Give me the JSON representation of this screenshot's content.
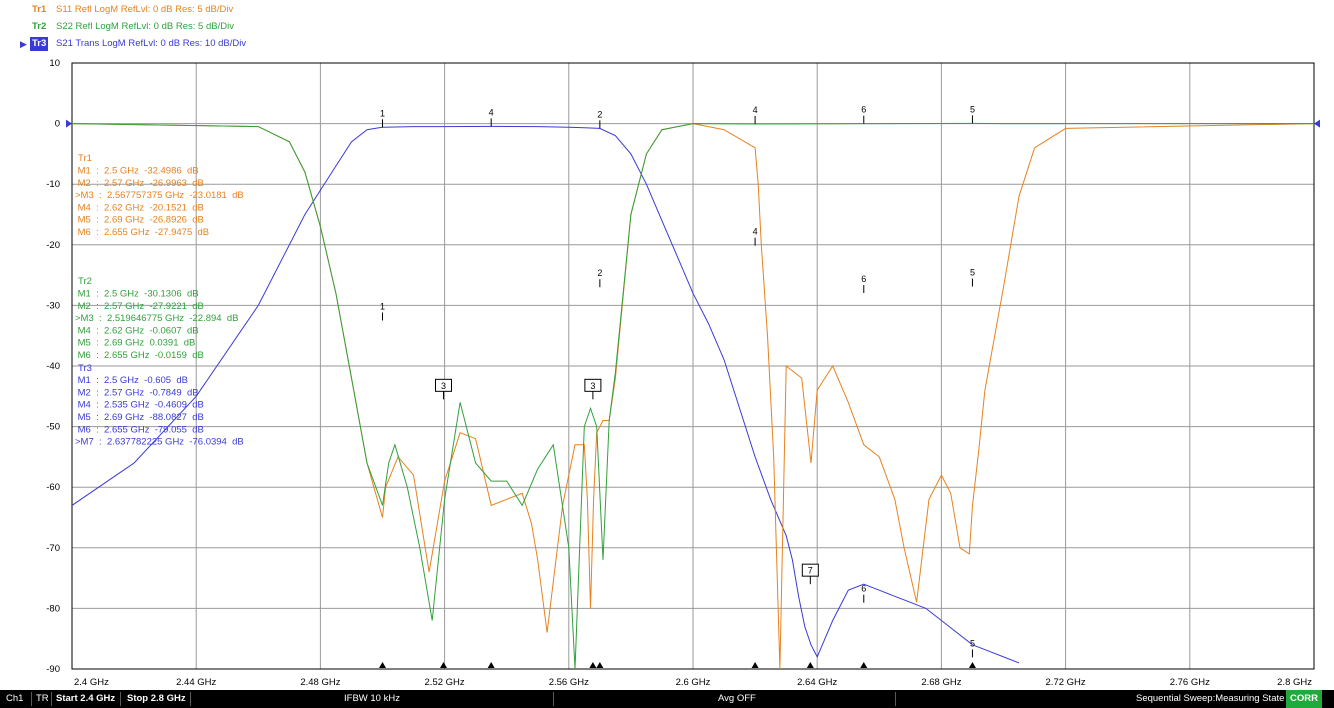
{
  "traces_header": [
    {
      "tag": "Tr1",
      "desc": "S11 Refl LogM RefLvl: 0  dB Res: 5  dB/Div",
      "color": "#e6821e",
      "active": false
    },
    {
      "tag": "Tr2",
      "desc": "S22 Refl LogM RefLvl: 0  dB Res: 5  dB/Div",
      "color": "#32a03c",
      "active": false
    },
    {
      "tag": "Tr3",
      "desc": "S21 Trans LogM RefLvl: 0  dB Res: 10  dB/Div",
      "color": "#3a3ad8",
      "active": true
    }
  ],
  "status": {
    "ch": "Ch1",
    "tr": "TR",
    "start": "Start 2.4 GHz",
    "stop": "Stop 2.8 GHz",
    "ifbw": "IFBW 10 kHz",
    "avg": "Avg OFF",
    "sweep": "Sequential Sweep:Measuring State",
    "corr": "CORR"
  },
  "colors": {
    "tr1": "#e6821e",
    "tr2": "#32a03c",
    "tr3": "#3a3ad8",
    "grid": "#9a9a9a",
    "frame": "#000000"
  },
  "chart_data": {
    "type": "line",
    "xlim": [
      2.4,
      2.8
    ],
    "ylim": [
      -90,
      10
    ],
    "x_unit": "GHz",
    "x_ticks": [
      2.4,
      2.44,
      2.48,
      2.52,
      2.56,
      2.6,
      2.64,
      2.68,
      2.72,
      2.76,
      2.8
    ],
    "x_tick_labels": [
      "2.4 GHz",
      "2.44 GHz",
      "2.48 GHz",
      "2.52 GHz",
      "2.56 GHz",
      "2.6 GHz",
      "2.64 GHz",
      "2.68 GHz",
      "2.72 GHz",
      "2.76 GHz",
      "2.8 GHz"
    ],
    "y_ticks": [
      10,
      0,
      -10,
      -20,
      -30,
      -40,
      -50,
      -60,
      -70,
      -80,
      -90
    ],
    "y_tick_labels": [
      "10",
      "0",
      "-10",
      "-20",
      "-30",
      "-40",
      "-50",
      "-60",
      "-70",
      "-80",
      "-90"
    ],
    "grid": true,
    "series": [
      {
        "name": "Tr1",
        "color": "#e6821e",
        "x": [
          2.4,
          2.46,
          2.47,
          2.475,
          2.48,
          2.485,
          2.49,
          2.495,
          2.5,
          2.501,
          2.505,
          2.51,
          2.515,
          2.52,
          2.525,
          2.53,
          2.535,
          2.54,
          2.545,
          2.548,
          2.55,
          2.553,
          2.558,
          2.562,
          2.565,
          2.566,
          2.567,
          2.568,
          2.569,
          2.571,
          2.573,
          2.575,
          2.58,
          2.585,
          2.59,
          2.6,
          2.61,
          2.62,
          2.621,
          2.622,
          2.624,
          2.626,
          2.628,
          2.63,
          2.635,
          2.638,
          2.64,
          2.645,
          2.65,
          2.655,
          2.66,
          2.665,
          2.668,
          2.672,
          2.676,
          2.68,
          2.683,
          2.686,
          2.689,
          2.69,
          2.692,
          2.694,
          2.7,
          2.705,
          2.71,
          2.72,
          2.8
        ],
        "y": [
          0,
          -0.5,
          -3,
          -8,
          -17,
          -28,
          -42,
          -56,
          -65,
          -60,
          -55,
          -58,
          -74,
          -59,
          -51,
          -52,
          -63,
          -62,
          -61,
          -66,
          -72,
          -84,
          -63,
          -53,
          -53,
          -62,
          -80,
          -62,
          -51,
          -49,
          -49,
          -42,
          -15,
          -5,
          -1,
          0,
          -1,
          -4,
          -10,
          -20,
          -35,
          -55,
          -90,
          -40,
          -42,
          -56,
          -44,
          -40,
          -46,
          -53,
          -55,
          -62,
          -70,
          -79,
          -62,
          -58,
          -61,
          -70,
          -71,
          -63,
          -54,
          -44,
          -27,
          -12,
          -4,
          -0.8,
          0
        ]
      },
      {
        "name": "Tr2",
        "color": "#32a03c",
        "x": [
          2.4,
          2.46,
          2.47,
          2.475,
          2.48,
          2.485,
          2.49,
          2.495,
          2.5,
          2.502,
          2.504,
          2.508,
          2.512,
          2.516,
          2.52,
          2.525,
          2.53,
          2.535,
          2.54,
          2.545,
          2.55,
          2.555,
          2.56,
          2.562,
          2.565,
          2.567,
          2.569,
          2.571,
          2.573,
          2.575,
          2.58,
          2.585,
          2.59,
          2.6,
          2.62,
          2.69,
          2.7,
          2.8
        ],
        "y": [
          0,
          -0.5,
          -3,
          -8,
          -17,
          -28,
          -42,
          -56,
          -63,
          -56,
          -53,
          -60,
          -70,
          -82,
          -62,
          -46,
          -56,
          -59,
          -59,
          -63,
          -57,
          -53,
          -70,
          -90,
          -50,
          -47,
          -50,
          -72,
          -49,
          -41,
          -15,
          -5,
          -1,
          0,
          -0.06,
          0.04,
          0,
          0
        ]
      },
      {
        "name": "Tr3",
        "color": "#3a3ad8",
        "x": [
          2.4,
          2.42,
          2.44,
          2.46,
          2.475,
          2.485,
          2.49,
          2.495,
          2.5,
          2.51,
          2.52,
          2.535,
          2.55,
          2.56,
          2.565,
          2.57,
          2.575,
          2.58,
          2.585,
          2.59,
          2.595,
          2.6,
          2.605,
          2.61,
          2.615,
          2.62,
          2.625,
          2.63,
          2.632,
          2.634,
          2.636,
          2.638,
          2.64,
          2.645,
          2.65,
          2.655,
          2.66,
          2.665,
          2.67,
          2.675,
          2.68,
          2.685,
          2.69,
          2.695,
          2.7,
          2.705
        ],
        "y": [
          -63,
          -56,
          -45,
          -30,
          -15,
          -7,
          -3,
          -1,
          -0.6,
          -0.5,
          -0.5,
          -0.46,
          -0.5,
          -0.6,
          -0.7,
          -0.8,
          -2,
          -5,
          -10,
          -16,
          -22,
          -28,
          -33,
          -39,
          -47,
          -55,
          -62,
          -68,
          -72,
          -78,
          -83,
          -86,
          -88,
          -82,
          -77,
          -76,
          -77,
          -78,
          -79,
          -80,
          -82,
          -84,
          -86,
          -87,
          -88,
          -89
        ]
      }
    ],
    "marker_tags": [
      {
        "series": "Tr3",
        "label": "1",
        "x": 2.5,
        "y": -0.605
      },
      {
        "series": "Tr3",
        "label": "4",
        "x": 2.535,
        "y": -0.4609
      },
      {
        "series": "Tr3",
        "label": "2",
        "x": 2.57,
        "y": -0.7849
      },
      {
        "series": "Tr2",
        "label": "4",
        "x": 2.62,
        "y": -0.0607
      },
      {
        "series": "Tr2",
        "label": "6",
        "x": 2.655,
        "y": -0.0159
      },
      {
        "series": "Tr2",
        "label": "5",
        "x": 2.69,
        "y": 0.0391
      },
      {
        "series": "Tr1",
        "label": "4",
        "x": 2.62,
        "y": -20.1521
      },
      {
        "series": "Tr1",
        "label": "6",
        "x": 2.655,
        "y": -27.9475
      },
      {
        "series": "Tr1",
        "label": "5",
        "x": 2.69,
        "y": -26.8926
      },
      {
        "series": "Tr1",
        "label": "1",
        "x": 2.5,
        "y": -32.4986
      },
      {
        "series": "Tr1",
        "label": "2",
        "x": 2.57,
        "y": -26.9963
      },
      {
        "series": "Tr3",
        "label": "6",
        "x": 2.655,
        "y": -79.055
      },
      {
        "series": "Tr3",
        "label": "5",
        "x": 2.69,
        "y": -88.0827
      }
    ],
    "marker_boxes": [
      {
        "series": "Tr2",
        "label": "3",
        "x": 2.519646775,
        "y": -45.5
      },
      {
        "series": "Tr1",
        "label": "3",
        "x": 2.567757375,
        "y": -45.5
      },
      {
        "series": "Tr3",
        "label": "7",
        "x": 2.637782225,
        "y": -76.0
      }
    ],
    "stimulus_markers": [
      2.5,
      2.519646775,
      2.535,
      2.567757375,
      2.57,
      2.62,
      2.637782225,
      2.655,
      2.69
    ],
    "marker_tables": [
      {
        "series": "Tr1",
        "color": "#e6821e",
        "title": "Tr1",
        "rows": [
          " M1  :  2.5 GHz  -32.4986  dB",
          " M2  :  2.57 GHz  -26.9963  dB",
          ">M3  :  2.567757375 GHz  -23.0181  dB",
          " M4  :  2.62 GHz  -20.1521  dB",
          " M5  :  2.69 GHz  -26.8926  dB",
          " M6  :  2.655 GHz  -27.9475  dB"
        ]
      },
      {
        "series": "Tr2",
        "color": "#32a03c",
        "title": "Tr2",
        "rows": [
          " M1  :  2.5 GHz  -30.1306  dB",
          " M2  :  2.57 GHz  -27.9221  dB",
          ">M3  :  2.519646775 GHz  -22.894  dB",
          " M4  :  2.62 GHz  -0.0607  dB",
          " M5  :  2.69 GHz  0.0391  dB",
          " M6  :  2.655 GHz  -0.0159  dB"
        ]
      },
      {
        "series": "Tr3",
        "color": "#3a3ad8",
        "title": "Tr3",
        "rows": [
          " M1  :  2.5 GHz  -0.605  dB",
          " M2  :  2.57 GHz  -0.7849  dB",
          " M4  :  2.535 GHz  -0.4609  dB",
          " M5  :  2.69 GHz  -88.0827  dB",
          " M6  :  2.655 GHz  -79.055  dB",
          ">M7  :  2.637782225 GHz  -76.0394  dB"
        ]
      }
    ]
  }
}
